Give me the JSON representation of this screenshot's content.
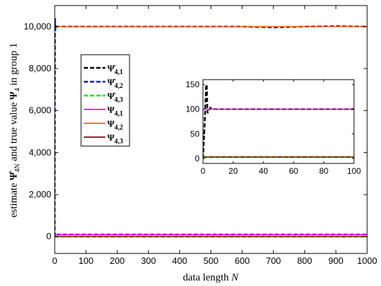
{
  "chart_data": [
    {
      "type": "line",
      "xlabel": "data length N",
      "ylabel": "estimate Ψ̂4N and true value Ψ4 in group 1",
      "xlim": [
        0,
        1000
      ],
      "ylim": [
        -800,
        11000
      ],
      "x_ticks": [
        "0",
        "100",
        "200",
        "300",
        "400",
        "500",
        "600",
        "700",
        "800",
        "900",
        "1000"
      ],
      "y_ticks": [
        "0",
        "2,000",
        "4,000",
        "6,000",
        "8,000",
        "10,000"
      ],
      "legend_position": "upper-left",
      "series": [
        {
          "name": "Ψ̂4,1",
          "color": "#000000",
          "style": "dashed",
          "x": [
            0,
            1,
            2,
            3,
            5,
            10,
            1000
          ],
          "y": [
            0,
            150,
            80,
            102,
            100,
            100,
            100
          ]
        },
        {
          "name": "Ψ̂4,2",
          "color": "#0000ff",
          "style": "dashed",
          "x": [
            0,
            1,
            2,
            3,
            5,
            100,
            200,
            300,
            400,
            500,
            600,
            650,
            700,
            750,
            800,
            850,
            900,
            950,
            1000
          ],
          "y": [
            0,
            10400,
            9800,
            10050,
            10000,
            10000,
            10000,
            10000,
            10000,
            10000,
            10000,
            9980,
            9960,
            9980,
            10000,
            10010,
            10020,
            10010,
            10000
          ]
        },
        {
          "name": "Ψ̂4,3",
          "color": "#00ee00",
          "style": "dashed",
          "x": [
            0,
            2,
            1000
          ],
          "y": [
            0,
            3,
            3
          ]
        },
        {
          "name": "Ψ4,1",
          "color": "#ff00ff",
          "style": "solid",
          "x": [
            0,
            1000
          ],
          "y": [
            100,
            100
          ]
        },
        {
          "name": "Ψ4,2",
          "color": "#ff6600",
          "style": "solid",
          "x": [
            0,
            1000
          ],
          "y": [
            10000,
            10000
          ]
        },
        {
          "name": "Ψ4,3",
          "color": "#8b0000",
          "style": "solid",
          "x": [
            0,
            1000
          ],
          "y": [
            3,
            3
          ]
        }
      ]
    },
    {
      "type": "line",
      "xlim": [
        0,
        100
      ],
      "ylim": [
        -10,
        160
      ],
      "x_ticks": [
        "0",
        "20",
        "40",
        "60",
        "80",
        "100"
      ],
      "y_ticks": [
        "0",
        "50",
        "100",
        "150"
      ],
      "series": [
        {
          "name": "Ψ̂4,1",
          "color": "#000000",
          "style": "dashed",
          "x": [
            0,
            1,
            2,
            2.5,
            3,
            4,
            5,
            6,
            8,
            10,
            20,
            40,
            60,
            80,
            100
          ],
          "y": [
            0,
            60,
            145,
            150,
            92,
            98,
            103,
            101,
            100,
            100,
            100,
            100,
            100,
            100,
            100
          ]
        },
        {
          "name": "Ψ̂4,3",
          "color": "#00ee00",
          "style": "dashed",
          "x": [
            0,
            100
          ],
          "y": [
            3,
            3
          ]
        },
        {
          "name": "Ψ4,1",
          "color": "#ff00ff",
          "style": "solid",
          "x": [
            0,
            100
          ],
          "y": [
            100,
            100
          ]
        },
        {
          "name": "Ψ4,3",
          "color": "#8b0000",
          "style": "solid",
          "x": [
            0,
            100
          ],
          "y": [
            3,
            3
          ]
        }
      ]
    }
  ],
  "legend": [
    {
      "label": "Ψ̂4,1",
      "color": "#000000",
      "style": "dashed"
    },
    {
      "label": "Ψ̂4,2",
      "color": "#0000ff",
      "style": "dashed"
    },
    {
      "label": "Ψ̂4,3",
      "color": "#00ee00",
      "style": "dashed"
    },
    {
      "label": "Ψ4,1",
      "color": "#ff00ff",
      "style": "solid"
    },
    {
      "label": "Ψ4,2",
      "color": "#ff6600",
      "style": "solid"
    },
    {
      "label": "Ψ4,3",
      "color": "#8b0000",
      "style": "solid"
    }
  ]
}
